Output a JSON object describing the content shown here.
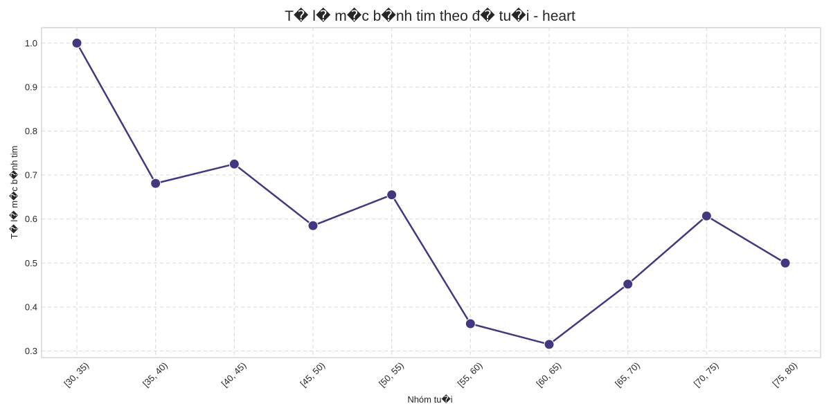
{
  "chart_data": {
    "type": "line",
    "title": "T� l� m�c b�nh tim theo đ� tu�i - heart",
    "xlabel": "Nhóm tu�i",
    "ylabel": "T� l� m�c b�nh tim",
    "categories": [
      "[30, 35)",
      "[35, 40)",
      "[40, 45)",
      "[45, 50)",
      "[50, 55)",
      "[55, 60)",
      "[60, 65)",
      "[65, 70)",
      "[70, 75)",
      "[75, 80)"
    ],
    "series": [
      {
        "values": [
          1.0,
          0.681,
          0.725,
          0.585,
          0.655,
          0.362,
          0.315,
          0.452,
          0.607,
          0.5
        ]
      }
    ],
    "ylim": [
      0.285,
      1.035
    ],
    "yticks": [
      "0.3",
      "0.4",
      "0.5",
      "0.6",
      "0.7",
      "0.8",
      "0.9",
      "1.0"
    ],
    "grid": true,
    "legend": "none",
    "colors": {
      "line": "#433880",
      "grid": "#d9d9d9",
      "frame": "#cccccc",
      "text": "#262626"
    }
  }
}
